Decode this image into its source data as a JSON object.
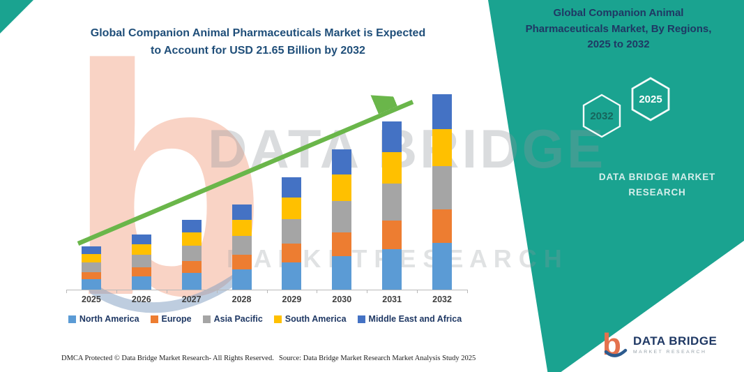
{
  "title": {
    "line1": "Global Companion Animal Pharmaceuticals Market is Expected",
    "line2": "to Account for USD 21.65 Billion by 2032"
  },
  "right_panel": {
    "heading_line1": "Global Companion Animal",
    "heading_line2": "Pharmaceuticals Market, By Regions,",
    "heading_line3": "2025 to 2032",
    "hexagons": [
      {
        "label": "2032"
      },
      {
        "label": "2025"
      }
    ],
    "brand_line1": "DATA BRIDGE MARKET",
    "brand_line2": "RESEARCH"
  },
  "watermark": {
    "line1": "DATA BRIDGE",
    "line2": "M A R K E T   R E S E A R C H",
    "logo_glyph": "b"
  },
  "footer": {
    "dmca": "DMCA Protected © Data Bridge Market Research-  All Rights Reserved.",
    "source": "Source: Data Bridge Market Research  Market Analysis Study 2025"
  },
  "logo": {
    "glyph": "b",
    "name": "DATA BRIDGE",
    "sub": "MARKET RESEARCH"
  },
  "colors": {
    "teal": "#1AA390",
    "title_blue": "#1F4E79",
    "navy": "#1F3864",
    "arrow_green": "#6AB64A",
    "watermark_orange": "#F4A98C"
  },
  "chart_data": {
    "type": "bar",
    "stacked": true,
    "title": "Global Companion Animal Pharmaceuticals Market is Expected to Account for USD 21.65 Billion by 2032",
    "unit": "USD Billion",
    "xlabel": "",
    "ylabel": "",
    "ylim": [
      0,
      22
    ],
    "grid": false,
    "legend_position": "bottom",
    "trend_arrow": true,
    "categories": [
      "2025",
      "2026",
      "2027",
      "2028",
      "2029",
      "2030",
      "2031",
      "2032"
    ],
    "series": [
      {
        "name": "North America",
        "color": "#5B9BD5",
        "values": [
          1.15,
          1.46,
          1.85,
          2.26,
          2.98,
          3.72,
          4.46,
          5.2
        ]
      },
      {
        "name": "Europe",
        "color": "#ED7D31",
        "values": [
          0.82,
          1.04,
          1.31,
          1.6,
          2.11,
          2.64,
          3.16,
          3.68
        ]
      },
      {
        "name": "Asia Pacific",
        "color": "#A5A5A5",
        "values": [
          1.06,
          1.34,
          1.69,
          2.07,
          2.73,
          3.41,
          4.09,
          4.76
        ]
      },
      {
        "name": "South America",
        "color": "#FFC000",
        "values": [
          0.91,
          1.16,
          1.46,
          1.79,
          2.36,
          2.95,
          3.53,
          4.11
        ]
      },
      {
        "name": "Middle East and Africa",
        "color": "#4472C4",
        "values": [
          0.86,
          1.1,
          1.39,
          1.68,
          2.22,
          2.78,
          3.36,
          3.9
        ]
      }
    ],
    "totals": [
      4.8,
      6.1,
      7.7,
      9.4,
      12.4,
      15.5,
      18.6,
      21.65
    ]
  }
}
